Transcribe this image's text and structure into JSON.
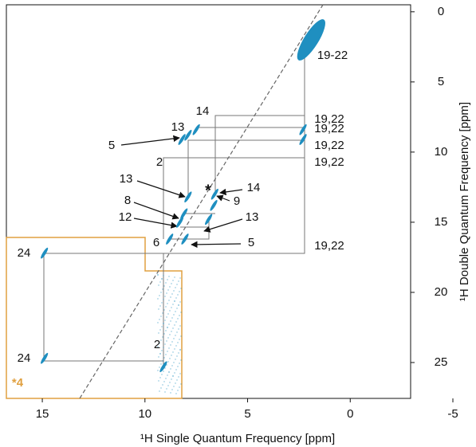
{
  "chart_data": {
    "type": "scatter",
    "x_label": "¹H Single Quantum Frequency [ppm]",
    "y_label": "¹H Double Quantum Frequency [ppm]",
    "xlim": [
      16.75,
      -5
    ],
    "ylim": [
      -0.5,
      27.5
    ],
    "xticks": [
      15,
      10,
      5,
      0,
      -5
    ],
    "yticks": [
      0,
      5,
      10,
      15,
      20,
      25
    ],
    "color": "#1f8fc0",
    "peaks": {
      "x": [
        1.9,
        2.3,
        2.3,
        8.2,
        7.9,
        7.5,
        7.9,
        6.6,
        8.3,
        8.1,
        6.9,
        6.65,
        8.8,
        8.05,
        14.9,
        14.9,
        9.1
      ],
      "y": [
        2.0,
        8.4,
        9.1,
        9.1,
        8.8,
        8.4,
        13.2,
        13.0,
        15.0,
        14.4,
        14.8,
        13.8,
        16.2,
        16.2,
        17.2,
        24.7,
        25.3
      ]
    },
    "annotations": [
      "19-22",
      "14",
      "13",
      "5",
      "19,22",
      "19,22",
      "19,22",
      "19,22",
      "19,22",
      "2",
      "13",
      "*",
      "14",
      "8",
      "9",
      "12",
      "13",
      "6",
      "5",
      "24",
      "24",
      "2",
      "*4"
    ]
  }
}
